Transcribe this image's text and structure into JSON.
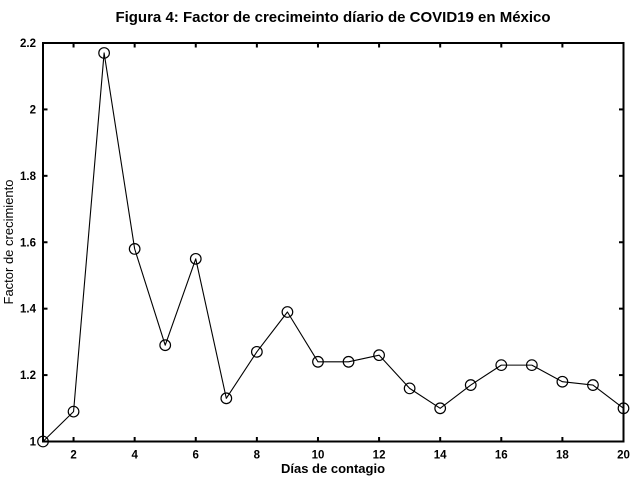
{
  "figure": {
    "background": "#ffffff",
    "ink_color": "#000000"
  },
  "chart_data": {
    "type": "line",
    "title": "Figura 4: Factor de crecimeinto díario de COVID19 en México",
    "xlabel": "Días de contagio",
    "ylabel": "Factor de crecimiento",
    "x": [
      1,
      2,
      3,
      4,
      5,
      6,
      7,
      8,
      9,
      10,
      11,
      12,
      13,
      14,
      15,
      16,
      17,
      18,
      19,
      20
    ],
    "values": [
      1.0,
      1.09,
      2.17,
      1.58,
      1.29,
      1.55,
      1.13,
      1.27,
      1.39,
      1.24,
      1.24,
      1.26,
      1.16,
      1.1,
      1.17,
      1.23,
      1.23,
      1.18,
      1.17,
      1.1
    ],
    "xlim": [
      1,
      20
    ],
    "ylim": [
      1,
      2.2
    ],
    "xticks": [
      2,
      4,
      6,
      8,
      10,
      12,
      14,
      16,
      18,
      20
    ],
    "xtick_labels": [
      "2",
      "4",
      "6",
      "8",
      "10",
      "12",
      "14",
      "16",
      "18",
      "20"
    ],
    "yticks": [
      1,
      1.2,
      1.4,
      1.6,
      1.8,
      2,
      2.2
    ],
    "ytick_labels": [
      "1",
      "1.2",
      "1.4",
      "1.6",
      "1.8",
      "2",
      "2.2"
    ],
    "grid": false,
    "legend": "none",
    "line_color": "#000000",
    "marker": "open-circle"
  }
}
